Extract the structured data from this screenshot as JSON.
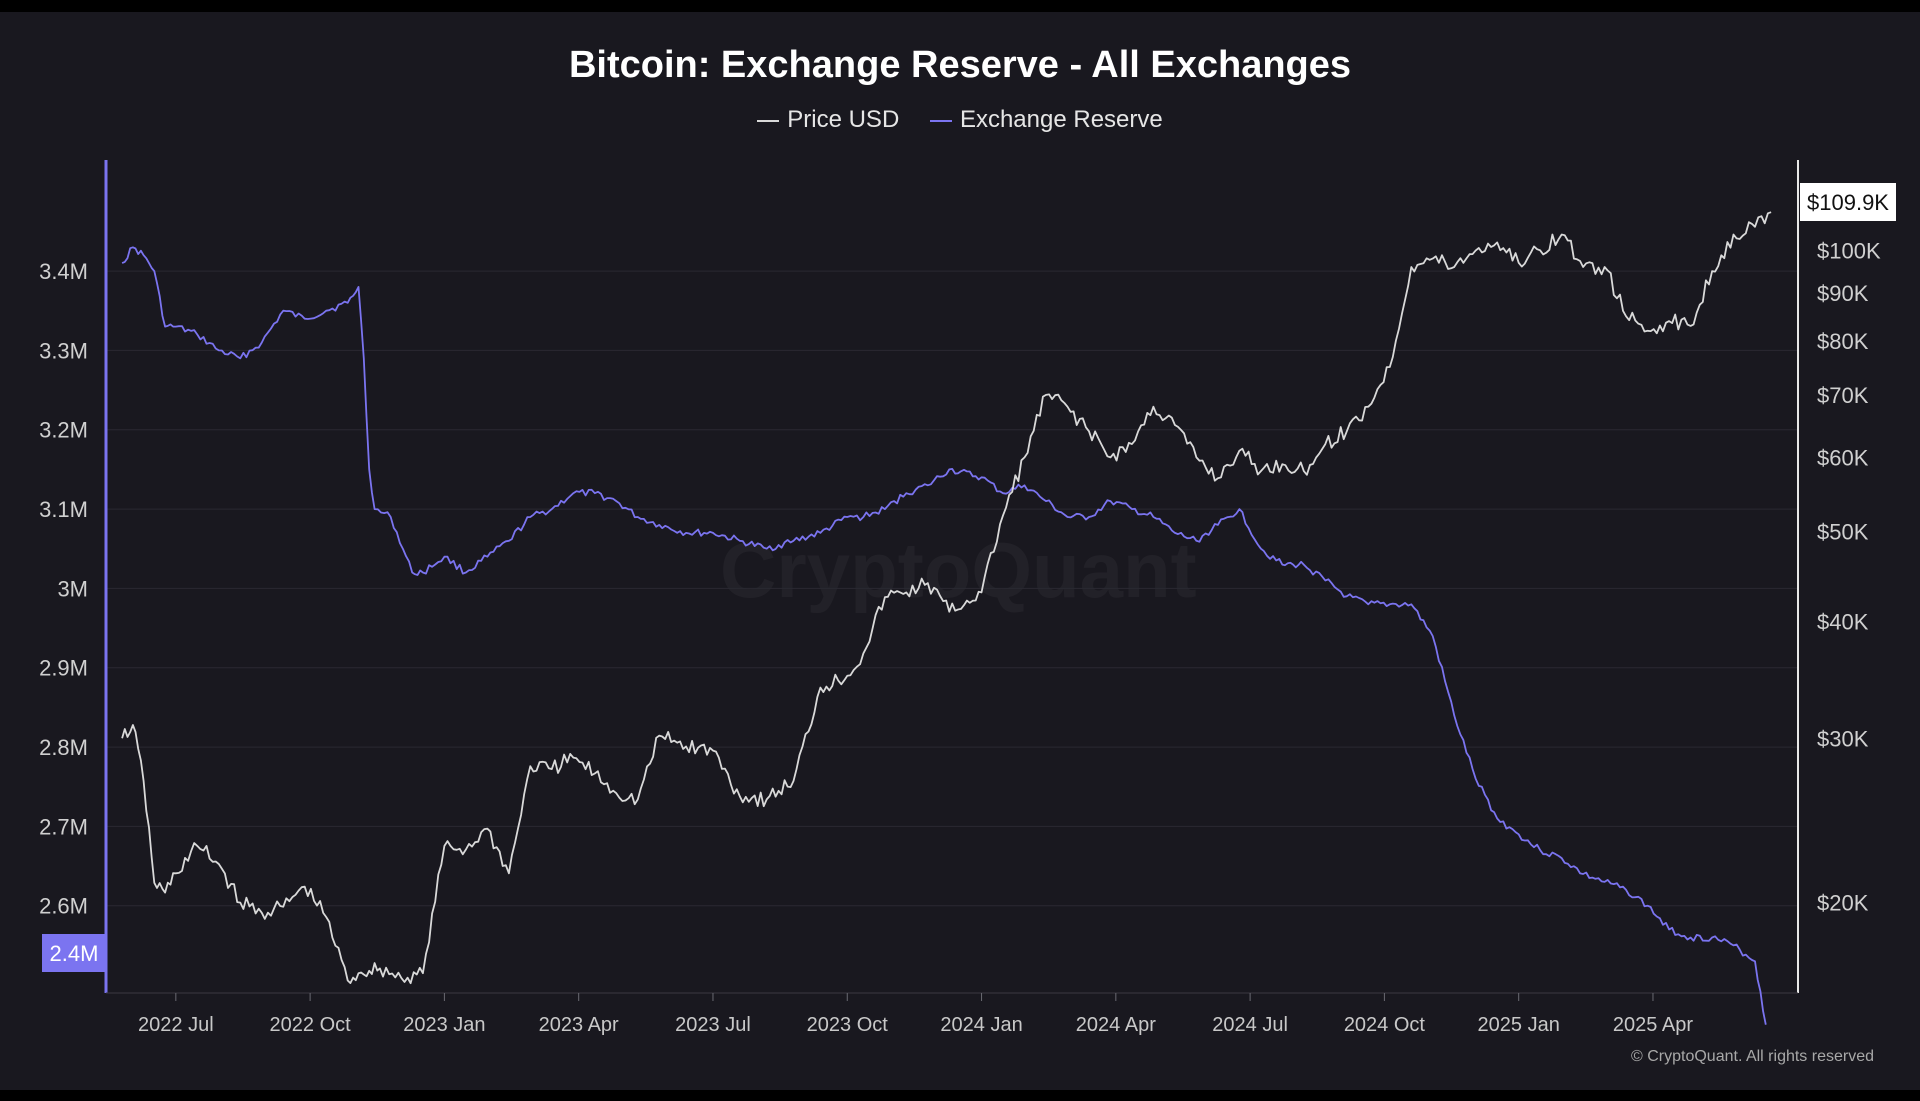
{
  "chart_data": {
    "type": "line",
    "title": "Bitcoin: Exchange Reserve - All Exchanges",
    "legend": [
      {
        "name": "Price USD",
        "color": "#d9d9d9"
      },
      {
        "name": "Exchange Reserve",
        "color": "#7b74f0"
      }
    ],
    "x_ticks": [
      "2022 Jul",
      "2022 Oct",
      "2023 Jan",
      "2023 Apr",
      "2023 Jul",
      "2023 Oct",
      "2024 Jan",
      "2024 Apr",
      "2024 Jul",
      "2024 Oct",
      "2025 Jan",
      "2025 Apr"
    ],
    "x_range": [
      2022.37,
      2025.52
    ],
    "left_axis": {
      "ticks": [
        "3.4M",
        "3.3M",
        "3.2M",
        "3.1M",
        "3M",
        "2.9M",
        "2.8M",
        "2.7M",
        "2.6M"
      ],
      "tick_values": [
        3.4,
        3.3,
        3.2,
        3.1,
        3.0,
        2.9,
        2.8,
        2.7,
        2.6
      ],
      "range": [
        2.49,
        3.54
      ],
      "unit": "million BTC"
    },
    "right_axis": {
      "ticks": [
        "$100K",
        "$90K",
        "$80K",
        "$70K",
        "$60K",
        "$50K",
        "$40K",
        "$30K",
        "$20K"
      ],
      "tick_values": [
        100000,
        90000,
        80000,
        70000,
        60000,
        50000,
        40000,
        30000,
        20000
      ],
      "scale": "log",
      "range": [
        16000,
        125000
      ]
    },
    "current_labels": {
      "reserve": "2.4M",
      "price": "$109.9K"
    },
    "series": [
      {
        "name": "Exchange Reserve",
        "axis": "left",
        "color": "#7b74f0",
        "x": [
          2022.4,
          2022.42,
          2022.44,
          2022.46,
          2022.48,
          2022.5,
          2022.54,
          2022.58,
          2022.62,
          2022.66,
          2022.7,
          2022.74,
          2022.78,
          2022.82,
          2022.84,
          2022.85,
          2022.86,
          2022.87,
          2022.9,
          2022.94,
          2022.96,
          2023.0,
          2023.04,
          2023.08,
          2023.12,
          2023.16,
          2023.2,
          2023.24,
          2023.28,
          2023.32,
          2023.36,
          2023.4,
          2023.45,
          2023.5,
          2023.55,
          2023.6,
          2023.65,
          2023.7,
          2023.75,
          2023.78,
          2023.82,
          2023.86,
          2023.9,
          2023.94,
          2024.0,
          2024.04,
          2024.08,
          2024.12,
          2024.16,
          2024.2,
          2024.24,
          2024.28,
          2024.32,
          2024.36,
          2024.4,
          2024.44,
          2024.48,
          2024.52,
          2024.56,
          2024.58,
          2024.6,
          2024.64,
          2024.68,
          2024.72,
          2024.76,
          2024.8,
          2024.84,
          2024.88,
          2024.92,
          2024.96,
          2025.0,
          2025.04,
          2025.08,
          2025.12,
          2025.16,
          2025.2,
          2025.24,
          2025.28,
          2025.32,
          2025.36,
          2025.4,
          2025.44,
          2025.46
        ],
        "values": [
          3.41,
          3.43,
          3.42,
          3.4,
          3.33,
          3.33,
          3.32,
          3.3,
          3.29,
          3.31,
          3.35,
          3.34,
          3.35,
          3.36,
          3.38,
          3.29,
          3.15,
          3.1,
          3.09,
          3.02,
          3.02,
          3.04,
          3.02,
          3.04,
          3.06,
          3.09,
          3.1,
          3.12,
          3.12,
          3.11,
          3.09,
          3.08,
          3.07,
          3.07,
          3.06,
          3.05,
          3.06,
          3.07,
          3.09,
          3.09,
          3.1,
          3.12,
          3.13,
          3.15,
          3.14,
          3.12,
          3.13,
          3.11,
          3.09,
          3.09,
          3.11,
          3.1,
          3.09,
          3.07,
          3.06,
          3.08,
          3.1,
          3.05,
          3.03,
          3.03,
          3.03,
          3.01,
          2.99,
          2.98,
          2.98,
          2.98,
          2.94,
          2.84,
          2.76,
          2.71,
          2.69,
          2.67,
          2.66,
          2.64,
          2.63,
          2.62,
          2.6,
          2.57,
          2.56,
          2.56,
          2.55,
          2.53,
          2.45
        ]
      },
      {
        "name": "Price USD",
        "axis": "right",
        "color": "#d9d9d9",
        "x": [
          2022.4,
          2022.42,
          2022.44,
          2022.46,
          2022.48,
          2022.5,
          2022.54,
          2022.58,
          2022.62,
          2022.66,
          2022.7,
          2022.74,
          2022.78,
          2022.82,
          2022.84,
          2022.86,
          2022.88,
          2022.92,
          2022.96,
          2023.0,
          2023.04,
          2023.08,
          2023.12,
          2023.16,
          2023.2,
          2023.24,
          2023.28,
          2023.32,
          2023.36,
          2023.4,
          2023.45,
          2023.5,
          2023.55,
          2023.6,
          2023.65,
          2023.7,
          2023.75,
          2023.78,
          2023.82,
          2023.86,
          2023.9,
          2023.94,
          2024.0,
          2024.04,
          2024.08,
          2024.12,
          2024.16,
          2024.2,
          2024.24,
          2024.28,
          2024.32,
          2024.36,
          2024.4,
          2024.44,
          2024.48,
          2024.52,
          2024.56,
          2024.6,
          2024.64,
          2024.68,
          2024.72,
          2024.76,
          2024.8,
          2024.84,
          2024.88,
          2024.92,
          2024.96,
          2025.0,
          2025.04,
          2025.08,
          2025.12,
          2025.16,
          2025.2,
          2025.24,
          2025.28,
          2025.32,
          2025.36,
          2025.4,
          2025.44,
          2025.47
        ],
        "values": [
          30000,
          31000,
          27000,
          21000,
          20500,
          21500,
          23000,
          22000,
          20000,
          19500,
          19800,
          20800,
          19300,
          16500,
          16800,
          16900,
          17000,
          16600,
          16800,
          23000,
          22800,
          24000,
          21500,
          28000,
          27800,
          28600,
          27500,
          26200,
          25800,
          30200,
          29400,
          29100,
          26000,
          25800,
          27000,
          34000,
          35000,
          37000,
          42500,
          43000,
          44000,
          41000,
          43000,
          52000,
          60000,
          70000,
          68000,
          64000,
          60000,
          62000,
          68000,
          65000,
          60000,
          57000,
          61000,
          58000,
          59000,
          58000,
          62000,
          64000,
          68000,
          75000,
          96000,
          98000,
          96000,
          100000,
          102000,
          97000,
          100000,
          104000,
          96000,
          96000,
          85000,
          82000,
          84000,
          83000,
          95000,
          104000,
          106000,
          109900
        ]
      }
    ]
  },
  "watermark": "CryptoQuant",
  "copyright": "© CryptoQuant. All rights reserved"
}
